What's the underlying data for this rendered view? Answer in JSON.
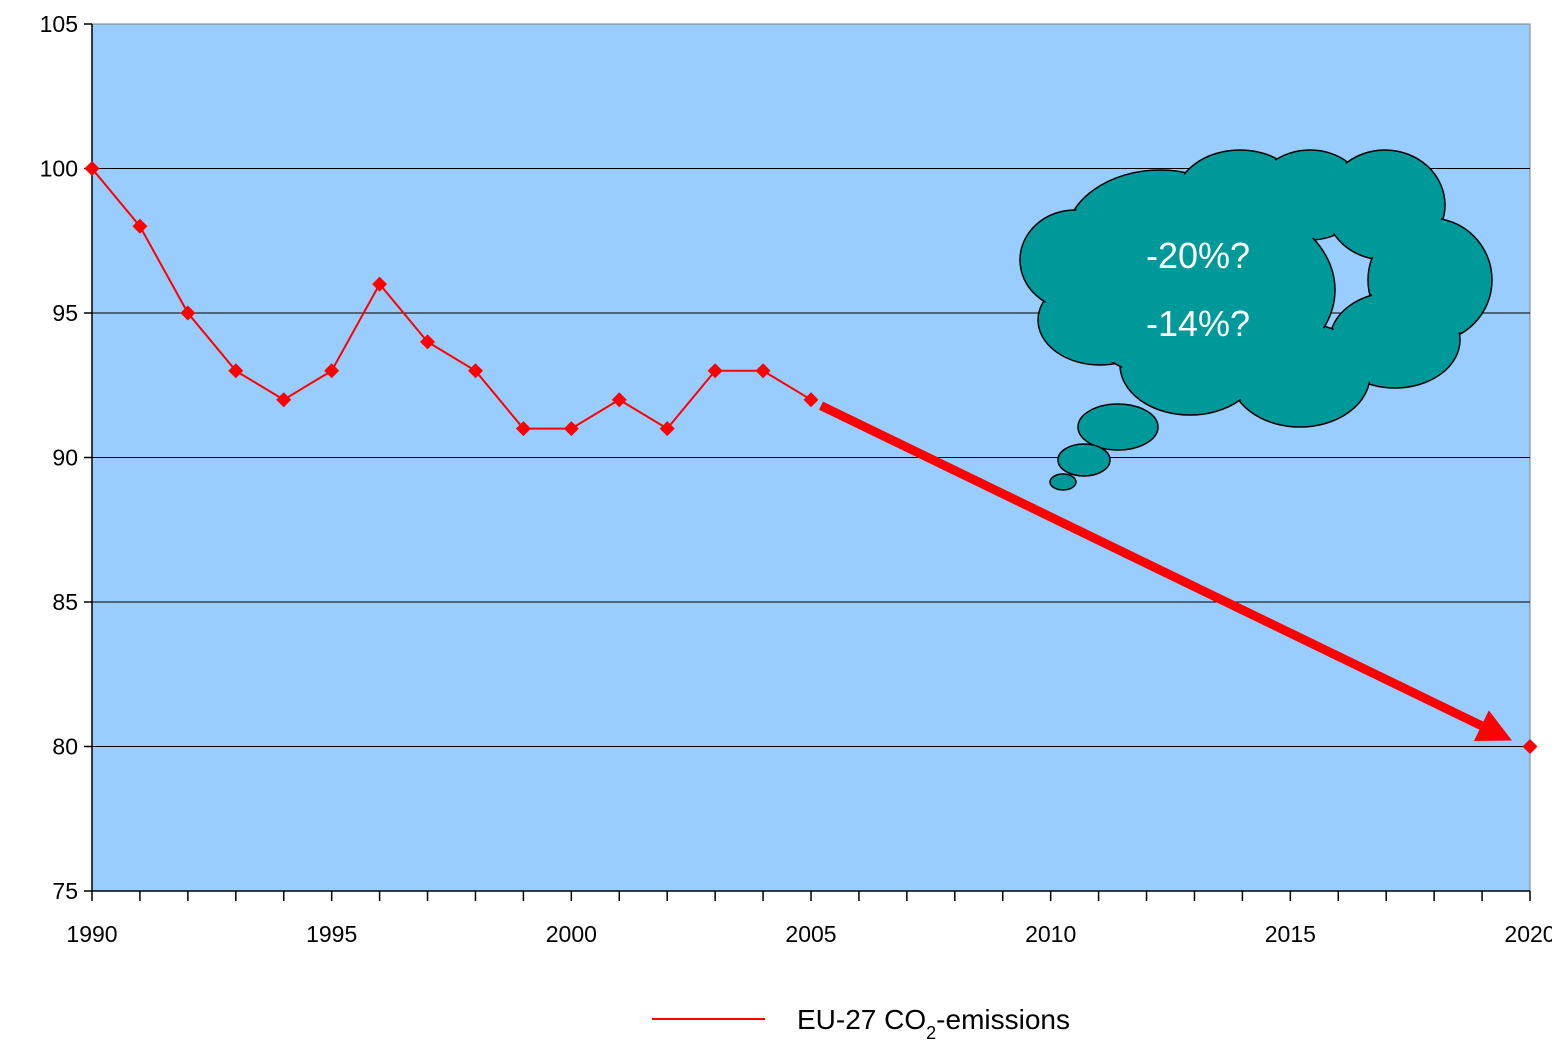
{
  "chart_data": {
    "type": "line",
    "title": "",
    "xlabel": "",
    "ylabel": "",
    "xlim": [
      1990,
      2020
    ],
    "ylim": [
      75,
      105
    ],
    "x_ticks": [
      1990,
      1995,
      2000,
      2005,
      2010,
      2015,
      2020
    ],
    "y_ticks": [
      75,
      80,
      85,
      90,
      95,
      100,
      105
    ],
    "grid": "horizontal",
    "series": [
      {
        "name": "EU-27 CO2-emissions",
        "color": "#ff0000",
        "marker": "diamond",
        "points": [
          {
            "x": 1990,
            "y": 100
          },
          {
            "x": 1991,
            "y": 98
          },
          {
            "x": 1992,
            "y": 95
          },
          {
            "x": 1993,
            "y": 93
          },
          {
            "x": 1994,
            "y": 92
          },
          {
            "x": 1995,
            "y": 93
          },
          {
            "x": 1996,
            "y": 96
          },
          {
            "x": 1997,
            "y": 94
          },
          {
            "x": 1998,
            "y": 93
          },
          {
            "x": 1999,
            "y": 91
          },
          {
            "x": 2000,
            "y": 91
          },
          {
            "x": 2001,
            "y": 92
          },
          {
            "x": 2002,
            "y": 91
          },
          {
            "x": 2003,
            "y": 93
          },
          {
            "x": 2004,
            "y": 93
          },
          {
            "x": 2005,
            "y": 92
          }
        ]
      }
    ],
    "target_point": {
      "x": 2020,
      "y": 80
    },
    "arrow": {
      "from": {
        "x": 2005,
        "y": 92
      },
      "to": {
        "x": 2020,
        "y": 80
      },
      "color": "#ff0000"
    },
    "legend": {
      "prefix": "EU-27 CO",
      "subscript": "2",
      "suffix": "-emissions",
      "position": "bottom"
    },
    "annotation": {
      "lines": [
        "-20%?",
        "-14%?"
      ],
      "shape": "thought-cloud",
      "fill": "#009999"
    },
    "colors": {
      "plot_background": "#99ccff",
      "gridline": "#000000",
      "series": "#ff0000",
      "cloud": "#009999"
    }
  }
}
